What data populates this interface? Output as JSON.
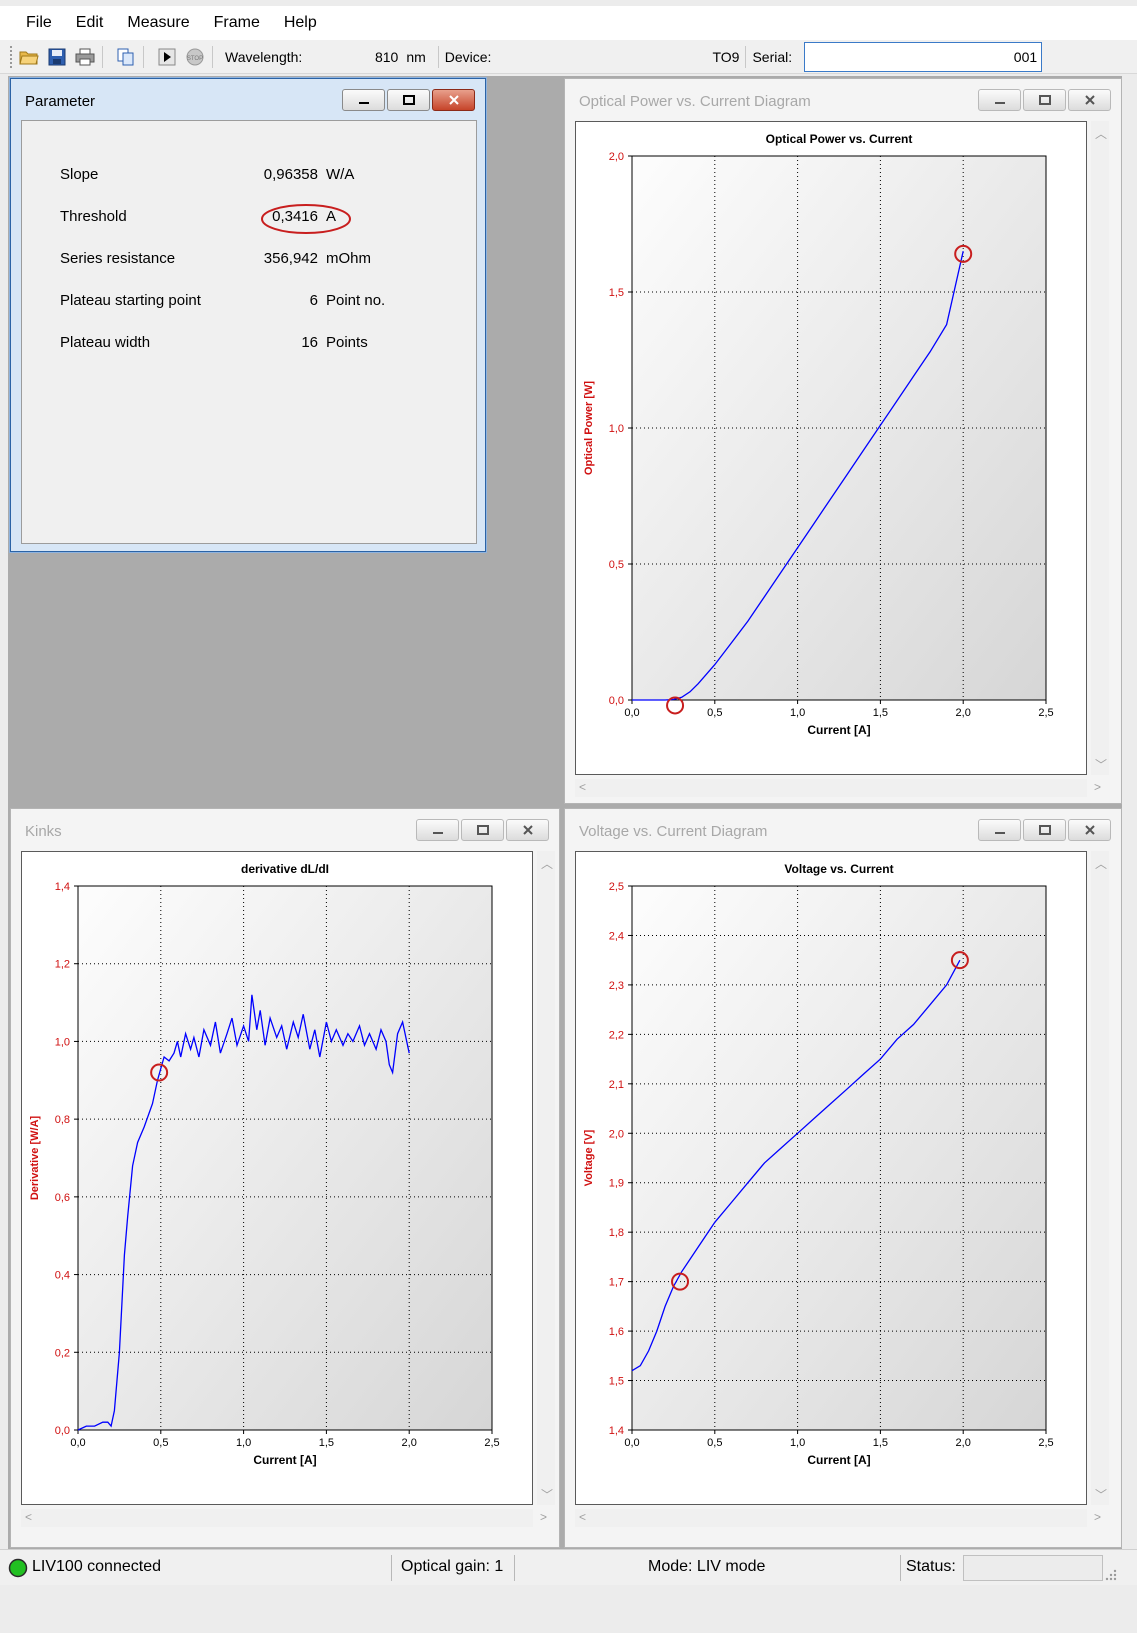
{
  "menubar": {
    "items": [
      "File",
      "Edit",
      "Measure",
      "Frame",
      "Help"
    ]
  },
  "toolbar": {
    "icons": [
      "open-folder-icon",
      "save-icon",
      "print-icon",
      "copy-icon",
      "run-icon",
      "stop-icon"
    ],
    "wavelength_label": "Wavelength:",
    "wavelength_value": "810",
    "wavelength_unit": "nm",
    "device_label": "Device:",
    "device_value": "TO9",
    "serial_label": "Serial:",
    "serial_value": "001"
  },
  "parameter_window": {
    "title": "Parameter",
    "rows": [
      {
        "label": "Slope",
        "value": "0,96358",
        "unit": "W/A"
      },
      {
        "label": "Threshold",
        "value": "0,3416",
        "unit": "A"
      },
      {
        "label": "Series resistance",
        "value": "356,942",
        "unit": "mOhm"
      },
      {
        "label": "Plateau starting point",
        "value": "6",
        "unit": "Point no."
      },
      {
        "label": "Plateau width",
        "value": "16",
        "unit": "Points"
      }
    ]
  },
  "windows": {
    "optical": {
      "title": "Optical Power vs. Current Diagram"
    },
    "kinks": {
      "title": "Kinks"
    },
    "voltage": {
      "title": "Voltage vs. Current Diagram"
    }
  },
  "statusbar": {
    "connection": "LIV100 connected",
    "optical_gain": "Optical gain: 1",
    "mode": "Mode: LIV mode",
    "status_label": "Status:",
    "connection_color": "#22c022"
  },
  "chart_data": [
    {
      "id": "optical",
      "type": "line",
      "title": "Optical Power vs. Current",
      "xlabel": "Current [A]",
      "ylabel": "Optical Power [W]",
      "xlim": [
        0,
        2.5
      ],
      "ylim": [
        0,
        2.0
      ],
      "xticks": [
        "0,0",
        "0,5",
        "1,0",
        "1,5",
        "2,0",
        "2,5"
      ],
      "yticks": [
        "0,0",
        "0,5",
        "1,0",
        "1,5",
        "2,0"
      ],
      "grid": true,
      "series": [
        {
          "color": "#0000ff",
          "x": [
            0.0,
            0.1,
            0.2,
            0.25,
            0.3,
            0.35,
            0.4,
            0.5,
            0.6,
            0.7,
            0.8,
            0.9,
            1.0,
            1.1,
            1.2,
            1.3,
            1.4,
            1.5,
            1.6,
            1.7,
            1.8,
            1.9,
            2.0
          ],
          "y": [
            0.0,
            0.0,
            0.0,
            0.002,
            0.01,
            0.03,
            0.06,
            0.13,
            0.21,
            0.29,
            0.38,
            0.47,
            0.56,
            0.65,
            0.74,
            0.83,
            0.92,
            1.01,
            1.1,
            1.19,
            1.28,
            1.38,
            1.65
          ]
        }
      ],
      "markers": [
        {
          "x": 0.26,
          "y": -0.02
        },
        {
          "x": 2.0,
          "y": 1.64
        }
      ]
    },
    {
      "id": "kinks",
      "type": "line",
      "title": "derivative  dL/dI",
      "xlabel": "Current [A]",
      "ylabel": "Derivative [W/A]",
      "xlim": [
        0,
        2.5
      ],
      "ylim": [
        0,
        1.4
      ],
      "xticks": [
        "0,0",
        "0,5",
        "1,0",
        "1,5",
        "2,0",
        "2,5"
      ],
      "yticks": [
        "0,0",
        "0,2",
        "0,4",
        "0,6",
        "0,8",
        "1,0",
        "1,2",
        "1,4"
      ],
      "grid": true,
      "series": [
        {
          "color": "#0000ff",
          "x": [
            0.0,
            0.05,
            0.1,
            0.15,
            0.18,
            0.2,
            0.22,
            0.25,
            0.28,
            0.3,
            0.33,
            0.36,
            0.4,
            0.45,
            0.48,
            0.5,
            0.52,
            0.55,
            0.58,
            0.6,
            0.62,
            0.65,
            0.68,
            0.7,
            0.73,
            0.76,
            0.8,
            0.83,
            0.86,
            0.9,
            0.93,
            0.96,
            1.0,
            1.03,
            1.05,
            1.08,
            1.1,
            1.13,
            1.16,
            1.2,
            1.23,
            1.26,
            1.3,
            1.33,
            1.36,
            1.4,
            1.43,
            1.46,
            1.5,
            1.53,
            1.56,
            1.6,
            1.63,
            1.66,
            1.7,
            1.73,
            1.76,
            1.8,
            1.83,
            1.86,
            1.88,
            1.9,
            1.93,
            1.96,
            2.0
          ],
          "y": [
            0.0,
            0.01,
            0.01,
            0.02,
            0.02,
            0.01,
            0.05,
            0.2,
            0.45,
            0.55,
            0.68,
            0.74,
            0.78,
            0.84,
            0.9,
            0.93,
            0.96,
            0.95,
            0.97,
            1.0,
            0.96,
            1.02,
            0.98,
            1.01,
            0.96,
            1.03,
            0.99,
            1.05,
            0.97,
            1.02,
            1.06,
            0.99,
            1.04,
            1.0,
            1.12,
            1.03,
            1.08,
            0.99,
            1.06,
            1.01,
            1.04,
            0.98,
            1.05,
            1.01,
            1.07,
            0.98,
            1.03,
            0.96,
            1.05,
            1.0,
            1.03,
            0.99,
            1.02,
            1.0,
            1.04,
            0.99,
            1.02,
            0.98,
            1.03,
            1.0,
            0.94,
            0.92,
            1.02,
            1.05,
            0.97
          ]
        }
      ],
      "markers": [
        {
          "x": 0.49,
          "y": 0.92
        }
      ]
    },
    {
      "id": "voltage",
      "type": "line",
      "title": "Voltage vs. Current",
      "xlabel": "Current [A]",
      "ylabel": "Voltage [V]",
      "xlim": [
        0,
        2.5
      ],
      "ylim": [
        1.4,
        2.5
      ],
      "xticks": [
        "0,0",
        "0,5",
        "1,0",
        "1,5",
        "2,0",
        "2,5"
      ],
      "yticks": [
        "1,4",
        "1,5",
        "1,6",
        "1,7",
        "1,8",
        "1,9",
        "2,0",
        "2,1",
        "2,2",
        "2,3",
        "2,4",
        "2,5"
      ],
      "grid": true,
      "series": [
        {
          "color": "#0000ff",
          "x": [
            0.0,
            0.05,
            0.1,
            0.15,
            0.2,
            0.25,
            0.3,
            0.4,
            0.5,
            0.6,
            0.7,
            0.8,
            0.9,
            1.0,
            1.1,
            1.2,
            1.3,
            1.4,
            1.5,
            1.6,
            1.7,
            1.8,
            1.9,
            1.98
          ],
          "y": [
            1.52,
            1.53,
            1.56,
            1.6,
            1.65,
            1.69,
            1.72,
            1.77,
            1.82,
            1.86,
            1.9,
            1.94,
            1.97,
            2.0,
            2.03,
            2.06,
            2.09,
            2.12,
            2.15,
            2.19,
            2.22,
            2.26,
            2.3,
            2.35
          ]
        }
      ],
      "markers": [
        {
          "x": 0.29,
          "y": 1.7
        },
        {
          "x": 1.98,
          "y": 2.35
        }
      ]
    }
  ]
}
